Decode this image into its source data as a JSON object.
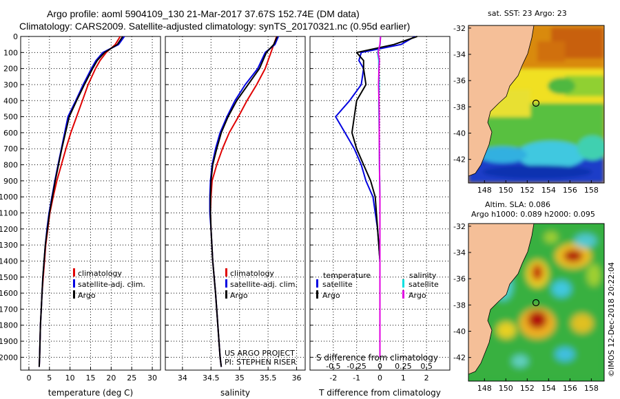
{
  "titles": {
    "line1": "Argo profile: aoml 5904109_130 21-Mar-2017 37.67S 152.74E (DM data)",
    "line2": "Climatology: CARS2009. Satellite-adjusted climatology: synTS_20170321.nc (0.95d earlier)"
  },
  "colors": {
    "climatology": "#e00000",
    "satellite": "#0000e0",
    "argo": "#000000",
    "sat_salinity": "#00e0e0",
    "argo_salinity": "#e000e0",
    "land": "#f5bf98"
  },
  "chart_data": [
    {
      "type": "line",
      "name": "temperature",
      "xlabel": "temperature (deg C)",
      "ylabel": "",
      "xlim": [
        -2,
        32
      ],
      "ylim": [
        0,
        2080
      ],
      "xticks": [
        0,
        5,
        10,
        15,
        20,
        25,
        30
      ],
      "yticks": [
        0,
        100,
        200,
        300,
        400,
        500,
        600,
        700,
        800,
        900,
        1000,
        1100,
        1200,
        1300,
        1400,
        1500,
        1600,
        1700,
        1800,
        1900,
        2000
      ],
      "legend": [
        "climatology",
        "satellite-adj. clim.",
        "Argo"
      ],
      "series": [
        {
          "name": "climatology",
          "depth": [
            0,
            50,
            100,
            150,
            200,
            300,
            400,
            500,
            600,
            700,
            800,
            900,
            1000,
            1100,
            1200,
            1300,
            1400,
            1500,
            1600,
            1700,
            1800,
            1900,
            2000,
            2060
          ],
          "values": [
            22.2,
            21.0,
            18.8,
            17.3,
            16.2,
            14.4,
            13.0,
            11.6,
            10.2,
            9.0,
            7.9,
            6.8,
            5.9,
            5.1,
            4.6,
            4.1,
            3.8,
            3.5,
            3.2,
            3.0,
            2.8,
            2.7,
            2.6,
            2.5
          ]
        },
        {
          "name": "satellite-adj. clim.",
          "depth": [
            0,
            50,
            100,
            150,
            200,
            300,
            400,
            500,
            600,
            700,
            800,
            900,
            1000,
            1100,
            1200,
            1300,
            1400,
            1500,
            1600,
            1700,
            1800,
            1900,
            2000,
            2060
          ],
          "values": [
            23.2,
            21.8,
            18.0,
            16.3,
            15.2,
            13.2,
            11.4,
            9.5,
            8.7,
            7.9,
            7.1,
            6.3,
            5.6,
            4.9,
            4.4,
            4.0,
            3.7,
            3.4,
            3.2,
            3.0,
            2.8,
            2.7,
            2.6,
            2.5
          ]
        },
        {
          "name": "Argo",
          "depth": [
            0,
            50,
            100,
            150,
            200,
            300,
            400,
            500,
            600,
            700,
            800,
            900,
            1000,
            1100,
            1200,
            1300,
            1400,
            1500,
            1600,
            1700,
            1800,
            1900,
            2000,
            2060
          ],
          "values": [
            22.8,
            21.5,
            18.4,
            16.6,
            15.5,
            13.5,
            11.6,
            9.8,
            8.9,
            8.0,
            7.2,
            6.4,
            5.7,
            5.0,
            4.5,
            4.0,
            3.7,
            3.4,
            3.2,
            3.0,
            2.8,
            2.7,
            2.6,
            2.5
          ]
        }
      ]
    },
    {
      "type": "line",
      "name": "salinity",
      "xlabel": "salinity",
      "xlim": [
        33.7,
        36.15
      ],
      "ylim": [
        0,
        2080
      ],
      "xticks": [
        34,
        34.5,
        35,
        35.5,
        36
      ],
      "legend": [
        "climatology",
        "satellite-adj. clim.",
        "Argo"
      ],
      "annotation": [
        "US ARGO PROJECT",
        "PI: STEPHEN RISER"
      ],
      "series": [
        {
          "name": "climatology",
          "depth": [
            0,
            50,
            100,
            200,
            300,
            400,
            500,
            600,
            700,
            800,
            900,
            1000,
            1100,
            1200,
            1400,
            1600,
            1800,
            2000,
            2060
          ],
          "values": [
            35.65,
            35.6,
            35.55,
            35.45,
            35.3,
            35.13,
            34.98,
            34.82,
            34.7,
            34.6,
            34.52,
            34.5,
            34.49,
            34.5,
            34.53,
            34.58,
            34.62,
            34.66,
            34.68
          ]
        },
        {
          "name": "satellite-adj. clim.",
          "depth": [
            0,
            50,
            100,
            200,
            300,
            400,
            500,
            600,
            700,
            800,
            900,
            1000,
            1100,
            1200,
            1400,
            1600,
            1800,
            2000,
            2060
          ],
          "values": [
            35.68,
            35.62,
            35.45,
            35.32,
            35.1,
            34.92,
            34.78,
            34.66,
            34.58,
            34.52,
            34.49,
            34.48,
            34.48,
            34.5,
            34.53,
            34.58,
            34.62,
            34.66,
            34.68
          ]
        },
        {
          "name": "Argo",
          "depth": [
            0,
            50,
            100,
            200,
            300,
            400,
            500,
            600,
            700,
            800,
            900,
            1000,
            1100,
            1200,
            1400,
            1600,
            1800,
            2000,
            2060
          ],
          "values": [
            35.66,
            35.6,
            35.47,
            35.35,
            35.15,
            34.95,
            34.8,
            34.68,
            34.6,
            34.53,
            34.5,
            34.49,
            34.49,
            34.5,
            34.53,
            34.58,
            34.62,
            34.66,
            34.68
          ]
        }
      ]
    },
    {
      "type": "line",
      "name": "differences",
      "xlabel": "T difference from climatology",
      "xlabel_top": "S difference from climatology",
      "xlim": [
        -3,
        3
      ],
      "ylim": [
        0,
        2080
      ],
      "xticks": [
        -2,
        -1,
        0,
        1,
        2
      ],
      "xticks_s": [
        -0.5,
        -0.25,
        0,
        0.25,
        0.5
      ],
      "legend_left_title": "temperature",
      "legend_right_title": "salinity",
      "legend": [
        "satellite",
        "Argo"
      ],
      "series": [
        {
          "name": "T satellite",
          "depth": [
            0,
            50,
            100,
            150,
            200,
            300,
            400,
            500,
            600,
            700,
            800,
            900,
            1000,
            1200,
            1400,
            1600,
            1800,
            2000
          ],
          "values": [
            1.5,
            0.9,
            -0.8,
            -0.9,
            -0.7,
            -0.8,
            -1.3,
            -1.9,
            -1.5,
            -1.1,
            -0.8,
            -0.6,
            -0.3,
            -0.1,
            0,
            0,
            0,
            0
          ]
        },
        {
          "name": "T Argo",
          "depth": [
            0,
            50,
            100,
            150,
            200,
            300,
            400,
            500,
            600,
            700,
            800,
            900,
            1000,
            1200,
            1400,
            1600,
            1800,
            2000
          ],
          "values": [
            1.6,
            0.6,
            -1.0,
            -0.7,
            -0.7,
            -0.6,
            -1.0,
            -1.1,
            -1.2,
            -1.0,
            -0.7,
            -0.4,
            -0.2,
            -0.1,
            0,
            0,
            0,
            0
          ]
        },
        {
          "name": "S satellite",
          "depth": [
            0,
            50,
            100,
            150,
            200,
            300,
            400,
            500,
            600,
            800,
            1000,
            1200,
            1400,
            1600,
            1800,
            2000
          ],
          "values": [
            0.02,
            0.01,
            -0.1,
            -0.05,
            -0.05,
            -0.03,
            -0.05,
            -0.04,
            -0.03,
            -0.02,
            0,
            0,
            0,
            0,
            0,
            0
          ]
        },
        {
          "name": "S Argo",
          "depth": [
            0,
            50,
            100,
            150,
            200,
            300,
            400,
            500,
            600,
            800,
            1000,
            1200,
            1400,
            1600,
            1800,
            2000
          ],
          "values": [
            0.03,
            0,
            -0.08,
            -0.02,
            -0.04,
            -0.06,
            -0.04,
            -0.03,
            -0.03,
            -0.02,
            0,
            0,
            0,
            0,
            0,
            0
          ]
        }
      ]
    },
    {
      "type": "heatmap",
      "name": "sst_map",
      "title": "sat. SST: 23 Argo: 23",
      "xlim": [
        146.5,
        159.2
      ],
      "ylim": [
        -43.8,
        -31.8
      ],
      "xticks": [
        148,
        150,
        152,
        154,
        156,
        158
      ],
      "yticks": [
        -32,
        -34,
        -36,
        -38,
        -40,
        -42
      ],
      "profile_location": [
        152.74,
        -37.67
      ]
    },
    {
      "type": "heatmap",
      "name": "sla_map",
      "title_lines": [
        "Altim. SLA: 0.086",
        "Argo h1000: 0.089 h2000: 0.095"
      ],
      "xlim": [
        146.5,
        159.2
      ],
      "ylim": [
        -43.8,
        -31.8
      ],
      "xticks": [
        148,
        150,
        152,
        154,
        156,
        158
      ],
      "yticks": [
        -32,
        -34,
        -36,
        -38,
        -40,
        -42
      ],
      "profile_location": [
        152.74,
        -37.67
      ]
    }
  ],
  "credit": "©IMOS 12-Dec-2018 20:22:04"
}
